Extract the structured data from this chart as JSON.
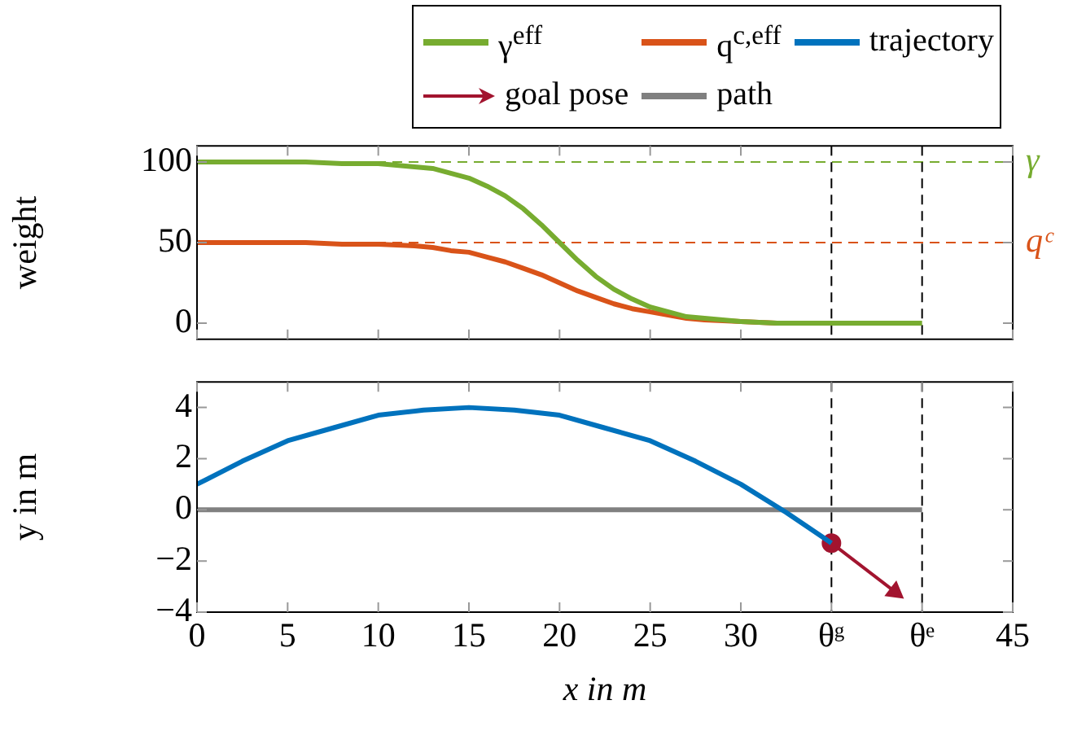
{
  "chart_data": [
    {
      "type": "line",
      "ylabel": "weight",
      "xlim": [
        0,
        45
      ],
      "xticks": [
        0,
        5,
        10,
        15,
        20,
        25,
        30,
        45
      ],
      "ylim": [
        -10,
        110
      ],
      "yticks": [
        0,
        50,
        100
      ],
      "tick_labels": "y",
      "grid": false,
      "legend": "top",
      "x": [
        0,
        2,
        4,
        6,
        8,
        10,
        12,
        13,
        14,
        15,
        16,
        17,
        18,
        19,
        20,
        21,
        22,
        23,
        24,
        25,
        26,
        27,
        28,
        30,
        32,
        34,
        36,
        38,
        40
      ],
      "series": [
        {
          "name": "γ$^{eff}$",
          "color": "#77ac30",
          "values": [
            100,
            100,
            100,
            100,
            99,
            99,
            97,
            96,
            93,
            90,
            85,
            79,
            71,
            61,
            50,
            39,
            29,
            21,
            15,
            10,
            7,
            4,
            3,
            1,
            0,
            0,
            0,
            0,
            0
          ]
        },
        {
          "name": "q$^{c,eff}$",
          "color": "#d95319",
          "values": [
            50,
            50,
            50,
            50,
            49,
            49,
            48,
            47,
            45,
            44,
            41,
            38,
            34,
            30,
            25,
            20,
            16,
            12,
            9,
            7,
            5,
            3,
            2,
            1,
            0,
            null,
            null,
            null,
            null
          ]
        }
      ],
      "ref_lines": [
        {
          "axis": "y",
          "value": 100,
          "label": "γ",
          "color": "#77ac30",
          "line_style": "dashed"
        },
        {
          "axis": "y",
          "value": 50,
          "label": "qᶜ",
          "color": "#d95319",
          "line_style": "dashed"
        },
        {
          "axis": "x",
          "value": 35,
          "color": "#000000",
          "line_style": "dashed"
        },
        {
          "axis": "x",
          "value": 40,
          "color": "#000000",
          "line_style": "dashed"
        }
      ]
    },
    {
      "type": "line",
      "xlabel": "x in m",
      "ylabel": "y in m",
      "xlim": [
        0,
        45
      ],
      "xticks": [
        0,
        5,
        10,
        15,
        20,
        25,
        30,
        {
          "value": 35,
          "label": "θᵍ"
        },
        {
          "value": 40,
          "label": "θᵉ"
        },
        45
      ],
      "ylim": [
        -4,
        5
      ],
      "yticks": [
        -4,
        -2,
        0,
        2,
        4
      ],
      "grid": false,
      "legend": "top",
      "series": [
        {
          "name": "trajectory",
          "color": "#0072bd",
          "x": [
            0,
            2.5,
            5,
            7.5,
            10,
            12.5,
            15,
            17.5,
            20,
            22.5,
            25,
            27.5,
            30,
            32.5,
            35
          ],
          "values": [
            1,
            1.9,
            2.7,
            3.2,
            3.7,
            3.9,
            4,
            3.9,
            3.7,
            3.2,
            2.7,
            1.9,
            1,
            -0.1,
            -1.3
          ]
        },
        {
          "name": "goal pose",
          "color": "#a2142f",
          "marker": "circle",
          "x": [
            35,
            38.5
          ],
          "values": [
            -1.3,
            -3.2
          ]
        },
        {
          "name": "path",
          "color": "#808080",
          "x": [
            0,
            40
          ],
          "values": [
            0,
            0
          ]
        }
      ],
      "ref_lines": [
        {
          "axis": "x",
          "value": 35,
          "color": "#000000",
          "line_style": "dashed"
        },
        {
          "axis": "x",
          "value": 40,
          "color": "#000000",
          "line_style": "dashed"
        }
      ]
    }
  ]
}
